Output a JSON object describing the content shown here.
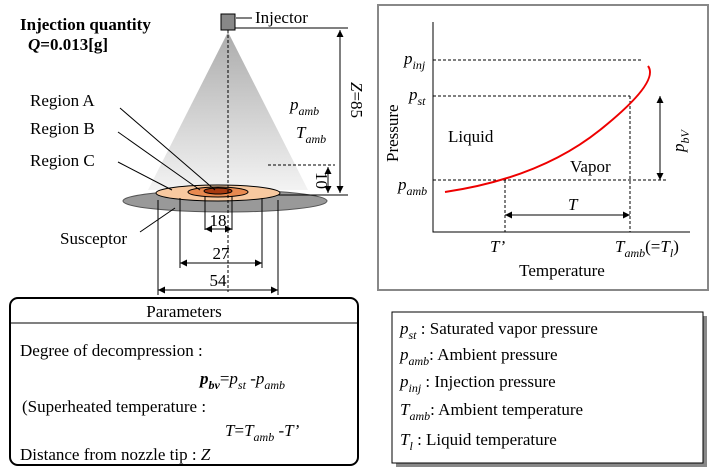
{
  "diagram": {
    "title": "Injection quantity",
    "quantity": [
      {
        "bi": "Q"
      },
      {
        "b": "=0.013[g]"
      }
    ],
    "injector": "Injector",
    "pressure": [
      {
        "i": "p"
      },
      {
        "sub": "amb"
      }
    ],
    "temperature": [
      {
        "i": "T"
      },
      {
        "sub": "amb"
      }
    ],
    "distance": [
      {
        "i": "Z"
      },
      {
        "t": "=85"
      }
    ],
    "regions": [
      "Region A",
      "Region B",
      "Region C"
    ],
    "susceptor": "Susceptor",
    "dims": [
      "10",
      "18",
      "27",
      "54"
    ]
  },
  "chart": {
    "y_axis": "Pressure",
    "x_axis": "Temperature",
    "p_inj": [
      {
        "i": "p"
      },
      {
        "sub": "inj"
      }
    ],
    "p_st": [
      {
        "i": "p"
      },
      {
        "sub": "st"
      }
    ],
    "p_amb": [
      {
        "i": "p"
      },
      {
        "sub": "amb"
      }
    ],
    "t_prime": [
      {
        "i": "T’"
      }
    ],
    "t_amb": [
      {
        "i": "T"
      },
      {
        "sub": "amb"
      },
      {
        "t": "(="
      },
      {
        "i": "T"
      },
      {
        "sub": "l"
      },
      {
        "t": ")"
      }
    ],
    "liquid": "Liquid",
    "vapor": "Vapor",
    "delta_t": [
      {
        "i": "T"
      }
    ],
    "delta_p": [
      {
        "i": "p"
      },
      {
        "sub": "bV"
      }
    ]
  },
  "parameters": {
    "heading": "Parameters",
    "lines": [
      [
        {
          "t": "Degree of decompression :"
        }
      ],
      [
        {
          "bi": "p"
        },
        {
          "bsub": "bv"
        },
        {
          "t": "="
        },
        {
          "i": "p"
        },
        {
          "sub": "st"
        },
        {
          "t": " -"
        },
        {
          "i": "p"
        },
        {
          "sub": "amb"
        }
      ],
      [
        {
          "t": "(Superheated temperature :"
        }
      ],
      [
        {
          "i": "T"
        },
        {
          "t": "="
        },
        {
          "i": "T"
        },
        {
          "sub": "amb"
        },
        {
          "t": " -"
        },
        {
          "i": "T’"
        }
      ],
      [
        {
          "t": "Distance from nozzle tip : "
        },
        {
          "i": "Z"
        }
      ]
    ]
  },
  "legend": [
    [
      {
        "i": "p"
      },
      {
        "sub": "st"
      },
      {
        "t": "  :  Saturated  vapor pressure"
      }
    ],
    [
      {
        "i": "p"
      },
      {
        "sub": "amb"
      },
      {
        "t": ": Ambient pressure"
      }
    ],
    [
      {
        "i": "p"
      },
      {
        "sub": "inj"
      },
      {
        "t": "  : Injection pressure"
      }
    ],
    [
      {
        "i": "T"
      },
      {
        "sub": "amb"
      },
      {
        "t": ": Ambient  temperature"
      }
    ],
    [
      {
        "i": "T"
      },
      {
        "sub": "l"
      },
      {
        "t": "    : Liquid temperature"
      }
    ]
  ]
}
